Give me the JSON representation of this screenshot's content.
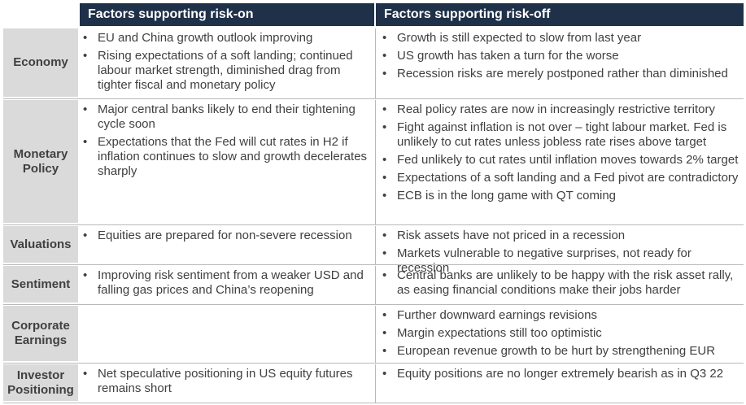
{
  "header": {
    "risk_on": "Factors supporting risk-on",
    "risk_off": "Factors supporting risk-off"
  },
  "rows": [
    {
      "label": "Economy",
      "risk_on": [
        "EU and China growth outlook improving",
        "Rising expectations of a soft landing; continued labour market strength, diminished drag from tighter fiscal and monetary policy"
      ],
      "risk_off": [
        "Growth is still expected to slow from last year",
        "US growth has taken a turn for the worse",
        "Recession risks are merely postponed rather than diminished"
      ]
    },
    {
      "label": "Monetary Policy",
      "risk_on": [
        "Major central banks likely to end their tightening cycle soon",
        "Expectations that the Fed will cut rates in H2 if inflation continues to slow and growth decelerates sharply"
      ],
      "risk_off": [
        "Real policy rates are now in increasingly restrictive territory",
        "Fight against inflation is not over – tight labour market. Fed is unlikely to cut rates unless jobless rate rises above target",
        "Fed unlikely to cut rates until inflation moves towards 2% target",
        "Expectations of a soft landing and a Fed pivot are contradictory",
        "ECB is in the long game with QT coming"
      ]
    },
    {
      "label": "Valuations",
      "risk_on": [
        "Equities are prepared for non-severe recession"
      ],
      "risk_off": [
        "Risk assets have not priced in a recession",
        "Markets vulnerable to negative surprises, not ready for recession"
      ]
    },
    {
      "label": "Sentiment",
      "risk_on": [
        "Improving risk sentiment from a weaker USD and falling gas prices and China’s reopening"
      ],
      "risk_off": [
        "Central banks are unlikely to be happy with the risk asset rally, as easing financial conditions make their jobs harder"
      ]
    },
    {
      "label": "Corporate Earnings",
      "risk_on": [],
      "risk_off": [
        "Further downward earnings revisions",
        "Margin expectations still too optimistic",
        "European revenue growth to be hurt by strengthening EUR"
      ]
    },
    {
      "label": "Investor Positioning",
      "risk_on": [
        "Net speculative positioning in US equity futures remains short"
      ],
      "risk_off": [
        "Equity positions are no longer extremely bearish as in Q3 22"
      ]
    }
  ]
}
